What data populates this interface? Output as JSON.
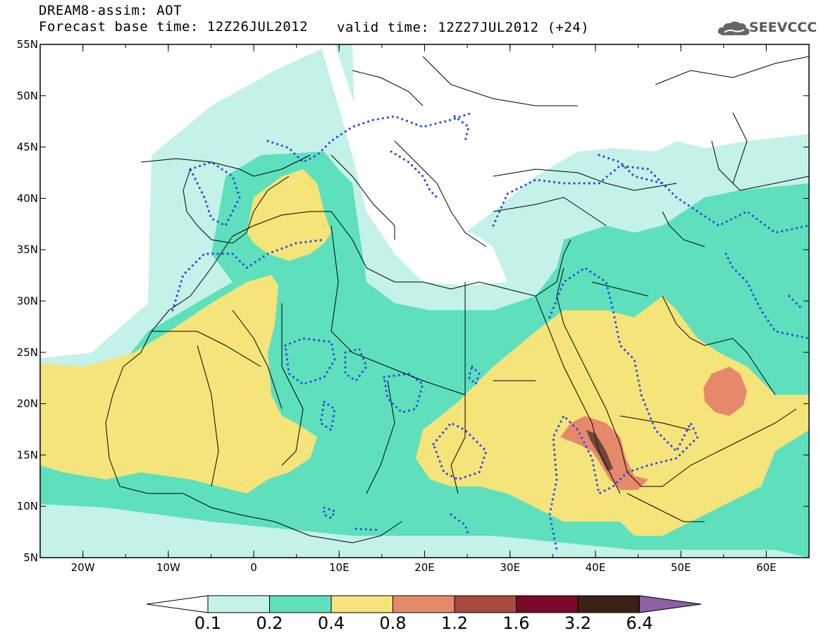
{
  "header": {
    "title": "DREAM8-assim: AOT",
    "forecast_base": "Forecast base time: 12Z26JUL2012",
    "valid_time": "valid time: 12Z27JUL2012 (+24)",
    "logo_text": "SEEVCCC",
    "logo_icon": "cloud-icon"
  },
  "map": {
    "lon_range": [
      -25,
      65
    ],
    "lat_range": [
      5,
      55
    ],
    "lat_ticks": [
      "55N",
      "50N",
      "45N",
      "40N",
      "35N",
      "30N",
      "25N",
      "20N",
      "15N",
      "10N",
      "5N"
    ],
    "lon_ticks": [
      "20W",
      "10W",
      "0",
      "10E",
      "20E",
      "30E",
      "40E",
      "50E",
      "60E"
    ],
    "contour_color": "#2f4fe8",
    "coastline_color": "#000000"
  },
  "colorbar": {
    "levels": [
      "0.1",
      "0.2",
      "0.4",
      "0.8",
      "1.2",
      "1.6",
      "3.2",
      "6.4"
    ],
    "colors": [
      "#ffffff",
      "#c4f2e8",
      "#5ee0bc",
      "#f5e47a",
      "#e6896a",
      "#a84a3c",
      "#7a0a28",
      "#3a2214",
      "#8c62a4"
    ]
  }
}
